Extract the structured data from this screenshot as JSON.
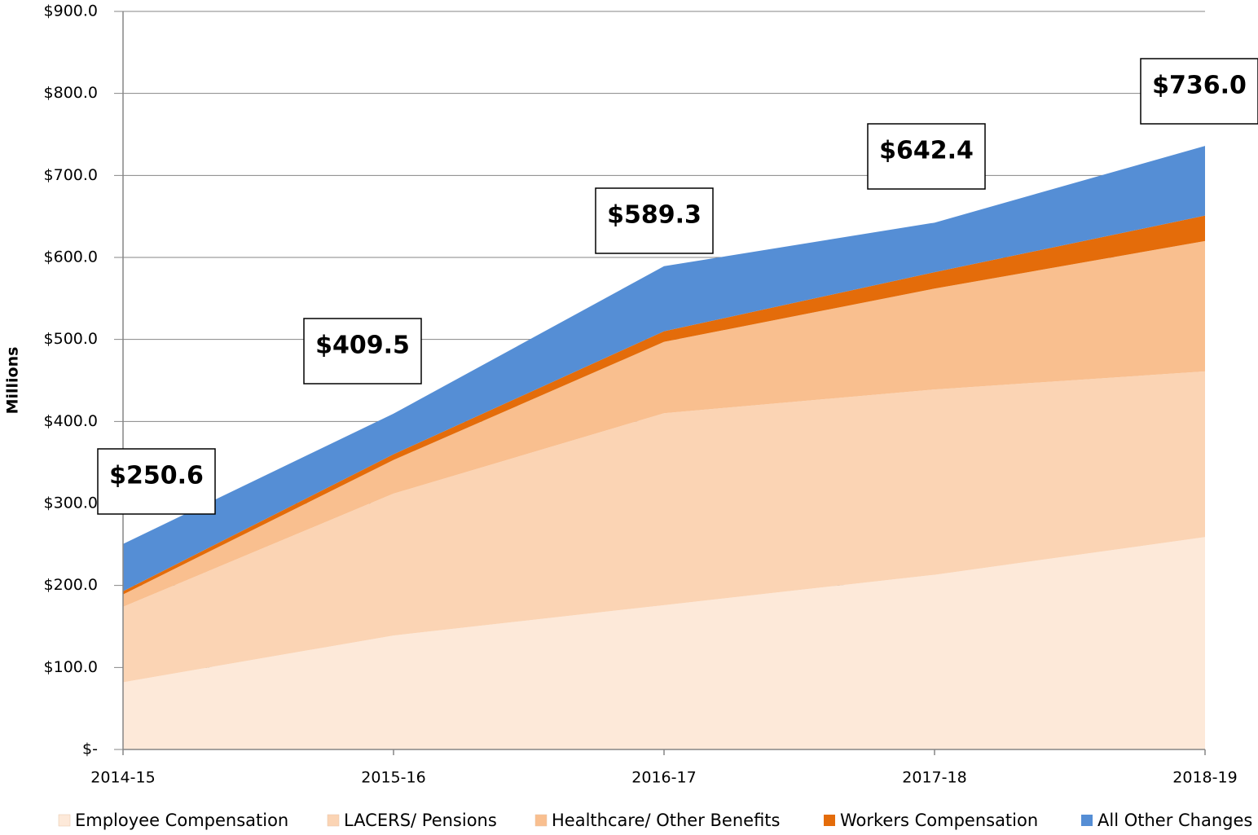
{
  "chart_data": {
    "type": "stacked_area",
    "y_axis_label": "Millions",
    "categories": [
      "2014-15",
      "2015-16",
      "2016-17",
      "2017-18",
      "2018-19"
    ],
    "series": [
      {
        "name": "Employee Compensation",
        "color": "#fde9d9",
        "values": [
          82,
          139,
          176,
          213,
          259
        ]
      },
      {
        "name": "LACERS/ Pensions",
        "color": "#fbd4b4",
        "values": [
          92,
          173,
          234,
          226,
          202
        ]
      },
      {
        "name": "Healthcare/ Other Benefits",
        "color": "#f9bf8f",
        "values": [
          15,
          41,
          87,
          123,
          159
        ]
      },
      {
        "name": "Workers Compensation",
        "color": "#e46c0a",
        "values": [
          4,
          7,
          13,
          20,
          31
        ]
      },
      {
        "name": "All Other Changes",
        "color": "#558ed5",
        "values": [
          57.6,
          49.5,
          79.3,
          60.4,
          85
        ]
      }
    ],
    "annotations": [
      "$250.6",
      "$409.5",
      "$589.3",
      "$642.4",
      "$736.0"
    ],
    "ylim": [
      0,
      900
    ],
    "yticks": [
      {
        "value": 0,
        "label": "$-"
      },
      {
        "value": 100,
        "label": "$100.0"
      },
      {
        "value": 200,
        "label": "$200.0"
      },
      {
        "value": 300,
        "label": "$300.0"
      },
      {
        "value": 400,
        "label": "$400.0"
      },
      {
        "value": 500,
        "label": "$500.0"
      },
      {
        "value": 600,
        "label": "$600.0"
      },
      {
        "value": 700,
        "label": "$700.0"
      },
      {
        "value": 800,
        "label": "$800.0"
      },
      {
        "value": 900,
        "label": "$900.0"
      }
    ],
    "grid": true,
    "legend": "bottom"
  }
}
